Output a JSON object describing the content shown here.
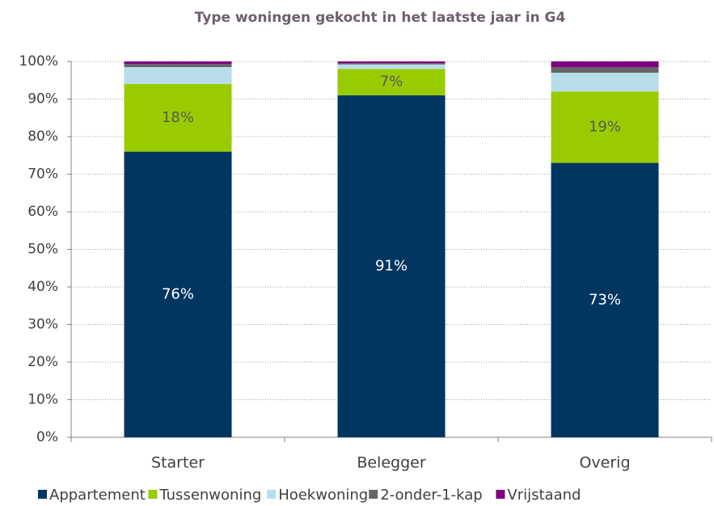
{
  "chart_data": {
    "type": "stacked_bar",
    "title": "Type woningen  gekocht in het laatste jaar in G4",
    "categories": [
      "Starter",
      "Belegger",
      "Overig"
    ],
    "series": [
      {
        "name": "Appartement",
        "color": "#003660",
        "label_color": "#ffffff",
        "values": [
          76,
          91,
          73
        ],
        "value_labels": [
          "76%",
          "91%",
          "73%"
        ]
      },
      {
        "name": "Tussenwoning",
        "color": "#99cc00",
        "label_color": "#595959",
        "values": [
          18,
          7,
          19
        ],
        "value_labels": [
          "18%",
          "7%",
          "19%"
        ]
      },
      {
        "name": "Hoekwoning",
        "color": "#b7dde8",
        "values": [
          4.5,
          1.2,
          5
        ]
      },
      {
        "name": "2-onder-1-kap",
        "color": "#666666",
        "values": [
          0.8,
          0.3,
          1.5
        ]
      },
      {
        "name": "Vrijstaand",
        "color": "#7f007f",
        "values": [
          0.7,
          0.5,
          1.5
        ]
      }
    ],
    "ylim": [
      0,
      100
    ],
    "yticks": [
      {
        "value": 0,
        "label": "0%"
      },
      {
        "value": 10,
        "label": "10%"
      },
      {
        "value": 20,
        "label": "20%"
      },
      {
        "value": 30,
        "label": "30%"
      },
      {
        "value": 40,
        "label": "40%"
      },
      {
        "value": 50,
        "label": "50%"
      },
      {
        "value": 60,
        "label": "60%"
      },
      {
        "value": 70,
        "label": "70%"
      },
      {
        "value": 80,
        "label": "80%"
      },
      {
        "value": 90,
        "label": "90%"
      },
      {
        "value": 100,
        "label": "100%"
      }
    ],
    "grid": true,
    "legend": "bottom"
  }
}
